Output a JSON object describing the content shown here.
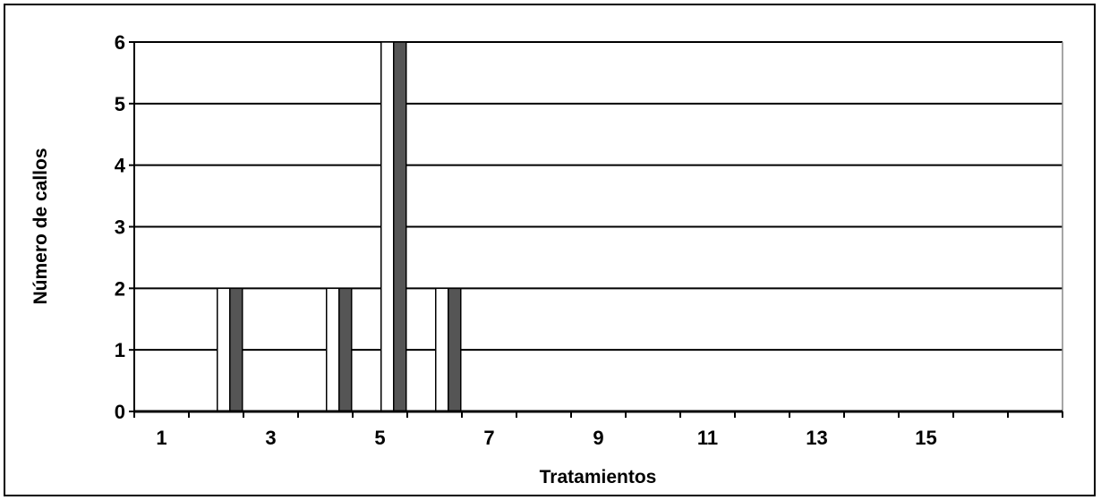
{
  "chart_data": {
    "type": "bar",
    "title": "",
    "xlabel": "Tratamientos",
    "ylabel": "Número de callos",
    "ylim": [
      0,
      6
    ],
    "yticks": [
      0,
      1,
      2,
      3,
      4,
      5,
      6
    ],
    "categories": [
      1,
      2,
      3,
      4,
      5,
      6,
      7,
      8,
      9,
      10,
      11,
      12,
      13,
      14,
      15,
      16,
      17
    ],
    "x_tick_labels": [
      "1",
      "3",
      "5",
      "7",
      "9",
      "11",
      "13",
      "15"
    ],
    "series": [
      {
        "values": [
          0,
          2,
          0,
          2,
          6,
          2,
          0,
          0,
          0,
          0,
          0,
          0,
          0,
          0,
          0,
          0,
          0
        ]
      },
      {
        "values": [
          0,
          2,
          0,
          2,
          6,
          2,
          0,
          0,
          0,
          0,
          0,
          0,
          0,
          0,
          0,
          0,
          0
        ]
      }
    ],
    "grid": true,
    "legend": "none",
    "colors": {
      "series1": "#ffffff",
      "series2": "#555555",
      "grid": "#000000"
    }
  }
}
